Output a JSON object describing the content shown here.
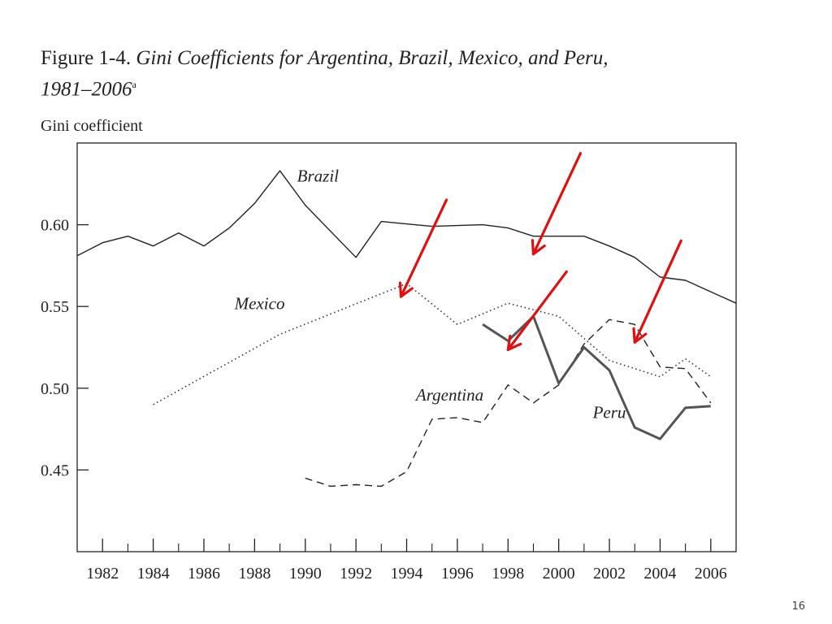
{
  "title": {
    "label": "Figure 1-4.",
    "main": "Gini Coefficients for Argentina, Brazil, Mexico, and Peru,",
    "years": "1981–2006",
    "footnote_mark": "a"
  },
  "slide_number": "16",
  "chart_data": {
    "type": "line",
    "title": "Gini Coefficients for Argentina, Brazil, Mexico, and Peru, 1981–2006",
    "ylabel": "Gini coefficient",
    "xlabel": "",
    "xlim": [
      1981,
      2007
    ],
    "ylim": [
      0.4,
      0.65
    ],
    "x_ticks": [
      1982,
      1984,
      1986,
      1988,
      1990,
      1992,
      1994,
      1996,
      1998,
      2000,
      2002,
      2004,
      2006
    ],
    "x_minor_ticks": [
      1983,
      1985,
      1987,
      1989,
      1991,
      1993,
      1995,
      1997,
      1999,
      2001,
      2003,
      2005
    ],
    "y_ticks": [
      {
        "value": 0.6,
        "label": "0.60"
      },
      {
        "value": 0.55,
        "label": "0.55"
      },
      {
        "value": 0.5,
        "label": "0.50"
      },
      {
        "value": 0.45,
        "label": "0.45"
      }
    ],
    "series": [
      {
        "name": "Brazil",
        "style": "solid",
        "color": "#222222",
        "x": [
          1981,
          1982,
          1983,
          1984,
          1985,
          1986,
          1987,
          1988,
          1989,
          1990,
          1992,
          1993,
          1995,
          1997,
          1998,
          1999,
          2001,
          2002,
          2003,
          2004,
          2005,
          2006,
          2007
        ],
        "y": [
          0.581,
          0.589,
          0.593,
          0.587,
          0.595,
          0.587,
          0.598,
          0.613,
          0.633,
          0.612,
          0.58,
          0.602,
          0.599,
          0.6,
          0.598,
          0.593,
          0.593,
          0.587,
          0.58,
          0.568,
          0.566,
          0.559,
          0.552
        ]
      },
      {
        "name": "Mexico",
        "style": "dotted",
        "color": "#333333",
        "x": [
          1984,
          1989,
          1994,
          1996,
          1998,
          2000,
          2002,
          2004,
          2005,
          2006
        ],
        "y": [
          0.49,
          0.533,
          0.564,
          0.539,
          0.552,
          0.544,
          0.517,
          0.507,
          0.518,
          0.507
        ]
      },
      {
        "name": "Argentina",
        "style": "dashed",
        "color": "#222222",
        "x": [
          1990,
          1991,
          1992,
          1993,
          1994,
          1995,
          1996,
          1997,
          1998,
          1999,
          2000,
          2001,
          2002,
          2003,
          2004,
          2005,
          2006
        ],
        "y": [
          0.445,
          0.44,
          0.441,
          0.44,
          0.449,
          0.481,
          0.482,
          0.479,
          0.502,
          0.491,
          0.502,
          0.527,
          0.542,
          0.539,
          0.513,
          0.512,
          0.491
        ]
      },
      {
        "name": "Peru",
        "style": "solid-bold",
        "color": "#555555",
        "x": [
          1997,
          1998,
          1999,
          2000,
          2001,
          2002,
          2003,
          2004,
          2005,
          2006
        ],
        "y": [
          0.539,
          0.529,
          0.544,
          0.503,
          0.525,
          0.511,
          0.476,
          0.469,
          0.488,
          0.489
        ]
      }
    ],
    "annotations": [
      {
        "type": "arrow",
        "color": "#e01010",
        "target_series": "Mexico",
        "target_year": 1994
      },
      {
        "type": "arrow",
        "color": "#e01010",
        "target_series": "Brazil",
        "target_year": 1999
      },
      {
        "type": "arrow",
        "color": "#e01010",
        "target_series": "Peru",
        "target_year": 1998
      },
      {
        "type": "arrow",
        "color": "#e01010",
        "target_series": "Argentina",
        "target_year": 2003
      }
    ]
  }
}
